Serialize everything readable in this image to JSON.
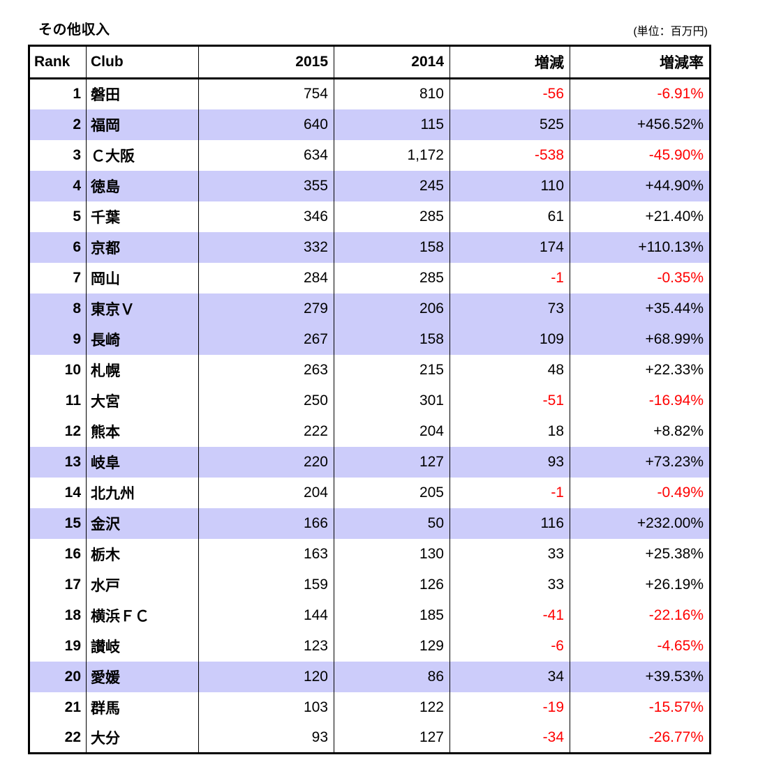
{
  "title": "その他収入",
  "unit_label": "(単位：百万円)",
  "colors": {
    "row_highlight": "#CCCCFA",
    "negative_text": "#FF0000",
    "border": "#000000",
    "background": "#FFFFFF"
  },
  "table": {
    "headers": {
      "rank": "Rank",
      "club": "Club",
      "y2015": "2015",
      "y2014": "2014",
      "diff": "増減",
      "rate": "増減率"
    },
    "rows": [
      {
        "rank": "1",
        "club": "磐田",
        "y2015": "754",
        "y2014": "810",
        "diff": "-56",
        "rate": "-6.91%",
        "highlighted": false
      },
      {
        "rank": "2",
        "club": "福岡",
        "y2015": "640",
        "y2014": "115",
        "diff": "525",
        "rate": "+456.52%",
        "highlighted": true
      },
      {
        "rank": "3",
        "club": "Ｃ大阪",
        "y2015": "634",
        "y2014": "1,172",
        "diff": "-538",
        "rate": "-45.90%",
        "highlighted": false
      },
      {
        "rank": "4",
        "club": "徳島",
        "y2015": "355",
        "y2014": "245",
        "diff": "110",
        "rate": "+44.90%",
        "highlighted": true
      },
      {
        "rank": "5",
        "club": "千葉",
        "y2015": "346",
        "y2014": "285",
        "diff": "61",
        "rate": "+21.40%",
        "highlighted": false
      },
      {
        "rank": "6",
        "club": "京都",
        "y2015": "332",
        "y2014": "158",
        "diff": "174",
        "rate": "+110.13%",
        "highlighted": true
      },
      {
        "rank": "7",
        "club": "岡山",
        "y2015": "284",
        "y2014": "285",
        "diff": "-1",
        "rate": "-0.35%",
        "highlighted": false
      },
      {
        "rank": "8",
        "club": "東京Ｖ",
        "y2015": "279",
        "y2014": "206",
        "diff": "73",
        "rate": "+35.44%",
        "highlighted": true
      },
      {
        "rank": "9",
        "club": "長崎",
        "y2015": "267",
        "y2014": "158",
        "diff": "109",
        "rate": "+68.99%",
        "highlighted": true
      },
      {
        "rank": "10",
        "club": "札幌",
        "y2015": "263",
        "y2014": "215",
        "diff": "48",
        "rate": "+22.33%",
        "highlighted": false
      },
      {
        "rank": "11",
        "club": "大宮",
        "y2015": "250",
        "y2014": "301",
        "diff": "-51",
        "rate": "-16.94%",
        "highlighted": false
      },
      {
        "rank": "12",
        "club": "熊本",
        "y2015": "222",
        "y2014": "204",
        "diff": "18",
        "rate": "+8.82%",
        "highlighted": false
      },
      {
        "rank": "13",
        "club": "岐阜",
        "y2015": "220",
        "y2014": "127",
        "diff": "93",
        "rate": "+73.23%",
        "highlighted": true
      },
      {
        "rank": "14",
        "club": "北九州",
        "y2015": "204",
        "y2014": "205",
        "diff": "-1",
        "rate": "-0.49%",
        "highlighted": false
      },
      {
        "rank": "15",
        "club": "金沢",
        "y2015": "166",
        "y2014": "50",
        "diff": "116",
        "rate": "+232.00%",
        "highlighted": true
      },
      {
        "rank": "16",
        "club": "栃木",
        "y2015": "163",
        "y2014": "130",
        "diff": "33",
        "rate": "+25.38%",
        "highlighted": false
      },
      {
        "rank": "17",
        "club": "水戸",
        "y2015": "159",
        "y2014": "126",
        "diff": "33",
        "rate": "+26.19%",
        "highlighted": false
      },
      {
        "rank": "18",
        "club": "横浜ＦＣ",
        "y2015": "144",
        "y2014": "185",
        "diff": "-41",
        "rate": "-22.16%",
        "highlighted": false
      },
      {
        "rank": "19",
        "club": "讃岐",
        "y2015": "123",
        "y2014": "129",
        "diff": "-6",
        "rate": "-4.65%",
        "highlighted": false
      },
      {
        "rank": "20",
        "club": "愛媛",
        "y2015": "120",
        "y2014": "86",
        "diff": "34",
        "rate": "+39.53%",
        "highlighted": true
      },
      {
        "rank": "21",
        "club": "群馬",
        "y2015": "103",
        "y2014": "122",
        "diff": "-19",
        "rate": "-15.57%",
        "highlighted": false
      },
      {
        "rank": "22",
        "club": "大分",
        "y2015": "93",
        "y2014": "127",
        "diff": "-34",
        "rate": "-26.77%",
        "highlighted": false
      }
    ]
  },
  "chart_data": {
    "type": "table",
    "title": "その他収入",
    "unit": "百万円",
    "columns": [
      "Rank",
      "Club",
      "2015",
      "2014",
      "増減",
      "増減率"
    ],
    "rows": [
      [
        1,
        "磐田",
        754,
        810,
        -56,
        -6.91
      ],
      [
        2,
        "福岡",
        640,
        115,
        525,
        456.52
      ],
      [
        3,
        "Ｃ大阪",
        634,
        1172,
        -538,
        -45.9
      ],
      [
        4,
        "徳島",
        355,
        245,
        110,
        44.9
      ],
      [
        5,
        "千葉",
        346,
        285,
        61,
        21.4
      ],
      [
        6,
        "京都",
        332,
        158,
        174,
        110.13
      ],
      [
        7,
        "岡山",
        284,
        285,
        -1,
        -0.35
      ],
      [
        8,
        "東京Ｖ",
        279,
        206,
        73,
        35.44
      ],
      [
        9,
        "長崎",
        267,
        158,
        109,
        68.99
      ],
      [
        10,
        "札幌",
        263,
        215,
        48,
        22.33
      ],
      [
        11,
        "大宮",
        250,
        301,
        -51,
        -16.94
      ],
      [
        12,
        "熊本",
        222,
        204,
        18,
        8.82
      ],
      [
        13,
        "岐阜",
        220,
        127,
        93,
        73.23
      ],
      [
        14,
        "北九州",
        204,
        205,
        -1,
        -0.49
      ],
      [
        15,
        "金沢",
        166,
        50,
        116,
        232.0
      ],
      [
        16,
        "栃木",
        163,
        130,
        33,
        25.38
      ],
      [
        17,
        "水戸",
        159,
        126,
        33,
        26.19
      ],
      [
        18,
        "横浜ＦＣ",
        144,
        185,
        -41,
        -22.16
      ],
      [
        19,
        "讃岐",
        123,
        129,
        -6,
        -4.65
      ],
      [
        20,
        "愛媛",
        120,
        86,
        34,
        39.53
      ],
      [
        21,
        "群馬",
        103,
        122,
        -19,
        -15.57
      ],
      [
        22,
        "大分",
        93,
        127,
        -34,
        -26.77
      ]
    ],
    "highlighted_ranks": [
      2,
      4,
      6,
      8,
      9,
      13,
      15,
      20
    ],
    "notes": "negative 増減 and 増減率 values rendered in red; 増減率 positive values prefixed with +"
  }
}
